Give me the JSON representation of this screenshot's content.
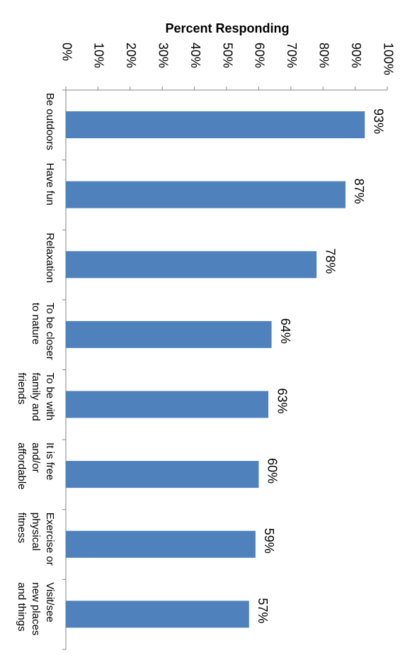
{
  "chart_data": {
    "type": "bar",
    "orientation": "horizontal",
    "title": "Percent Responding",
    "categories": [
      "Be outdoors",
      "Have fun",
      "Relaxation",
      "To be closer to nature",
      "To be with family and friends",
      "It is free and/or affordable",
      "Exercise or physical fitness",
      "Visit/see new places and things"
    ],
    "category_label_lines": [
      [
        "Be outdoors"
      ],
      [
        "Have fun"
      ],
      [
        "Relaxation"
      ],
      [
        "To be closer",
        "to nature"
      ],
      [
        "To be with",
        "family and",
        "friends"
      ],
      [
        "It is free",
        "and/or",
        "affordable"
      ],
      [
        "Exercise or",
        "physical",
        "fitness"
      ],
      [
        "Visit/see",
        "new places",
        "and things"
      ]
    ],
    "values": [
      93,
      87,
      78,
      64,
      63,
      60,
      59,
      57
    ],
    "data_labels": [
      "93%",
      "87%",
      "78%",
      "64%",
      "63%",
      "60%",
      "59%",
      "57%"
    ],
    "xlim": [
      0,
      100
    ],
    "tick_labels": [
      "0%",
      "10%",
      "20%",
      "30%",
      "40%",
      "50%",
      "60%",
      "70%",
      "80%",
      "90%",
      "100%"
    ],
    "bar_color": "#4F81BD",
    "axis_color": "#868686",
    "text_color": "#000000",
    "grid": false,
    "legend": "none",
    "rotation": "rotated 90° clockwise"
  }
}
